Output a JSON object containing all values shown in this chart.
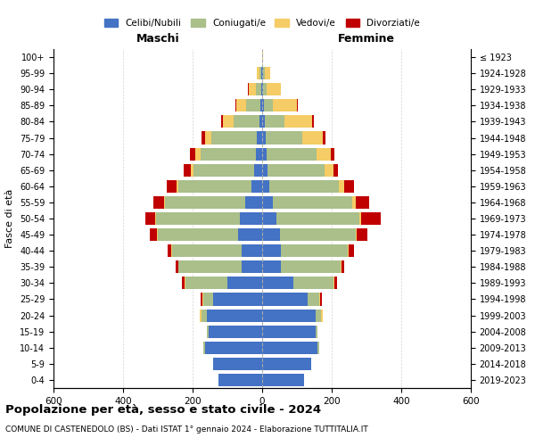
{
  "age_groups": [
    "0-4",
    "5-9",
    "10-14",
    "15-19",
    "20-24",
    "25-29",
    "30-34",
    "35-39",
    "40-44",
    "45-49",
    "50-54",
    "55-59",
    "60-64",
    "65-69",
    "70-74",
    "75-79",
    "80-84",
    "85-89",
    "90-94",
    "95-99",
    "100+"
  ],
  "birth_years": [
    "2019-2023",
    "2014-2018",
    "2009-2013",
    "2004-2008",
    "1999-2003",
    "1994-1998",
    "1989-1993",
    "1984-1988",
    "1979-1983",
    "1974-1978",
    "1969-1973",
    "1964-1968",
    "1959-1963",
    "1954-1958",
    "1949-1953",
    "1944-1948",
    "1939-1943",
    "1934-1938",
    "1929-1933",
    "1924-1928",
    "≤ 1923"
  ],
  "colors": {
    "celibe": "#4472C4",
    "coniugato": "#AABF8A",
    "vedovo": "#F5CC65",
    "divorziato": "#C00000"
  },
  "maschi": {
    "celibe": [
      125,
      140,
      165,
      155,
      160,
      140,
      100,
      60,
      60,
      70,
      65,
      50,
      30,
      22,
      18,
      15,
      8,
      5,
      3,
      2,
      0
    ],
    "coniugato": [
      0,
      0,
      5,
      5,
      15,
      30,
      120,
      180,
      200,
      230,
      240,
      230,
      210,
      175,
      160,
      130,
      75,
      40,
      15,
      5,
      0
    ],
    "vedovo": [
      0,
      0,
      0,
      0,
      5,
      2,
      2,
      2,
      2,
      2,
      2,
      3,
      5,
      8,
      15,
      20,
      30,
      30,
      20,
      8,
      0
    ],
    "divorziato": [
      0,
      0,
      0,
      0,
      0,
      5,
      8,
      8,
      10,
      20,
      30,
      30,
      30,
      20,
      15,
      10,
      5,
      3,
      2,
      0,
      0
    ]
  },
  "femmine": {
    "nubile": [
      120,
      140,
      160,
      155,
      155,
      130,
      90,
      55,
      55,
      50,
      40,
      30,
      20,
      15,
      12,
      10,
      8,
      5,
      3,
      2,
      0
    ],
    "coniugata": [
      0,
      0,
      5,
      5,
      15,
      35,
      115,
      170,
      190,
      220,
      240,
      230,
      200,
      165,
      145,
      105,
      55,
      25,
      10,
      5,
      0
    ],
    "vedova": [
      0,
      0,
      0,
      0,
      5,
      2,
      2,
      2,
      3,
      3,
      5,
      8,
      15,
      25,
      40,
      60,
      80,
      70,
      40,
      15,
      2
    ],
    "divorziata": [
      0,
      0,
      0,
      0,
      0,
      5,
      8,
      10,
      15,
      30,
      55,
      40,
      30,
      12,
      10,
      8,
      5,
      3,
      2,
      0,
      0
    ]
  },
  "title": "Popolazione per età, sesso e stato civile - 2024",
  "subtitle": "COMUNE DI CASTENEDOLO (BS) - Dati ISTAT 1° gennaio 2024 - Elaborazione TUTTITALIA.IT",
  "xlabel_left": "Maschi",
  "xlabel_right": "Femmine",
  "ylabel": "Fasce di età",
  "xlim": 600,
  "legend_labels": [
    "Celibi/Nubili",
    "Coniugati/e",
    "Vedovi/e",
    "Divorziati/e"
  ]
}
